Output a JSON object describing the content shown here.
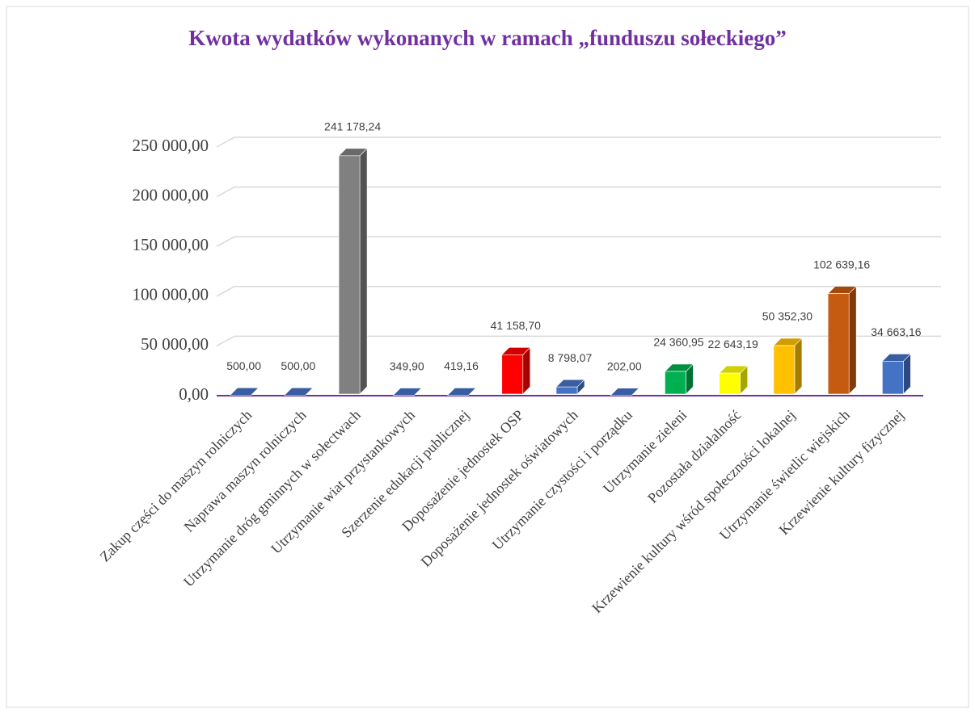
{
  "chart_data": {
    "type": "bar3d",
    "title": "Kwota wydatków wykonanych w ramach „funduszu sołeckiego”",
    "categories": [
      "Zakup części do maszyn rolniczych",
      "Naprawa maszyn rolniczych",
      "Utrzymanie dróg gminnych w sołectwach",
      "Utrzymanie wiat przystankowych",
      "Szerzenie edukacji publicznej",
      "Doposażenie jednostek OSP",
      "Doposażenie jednostek oświatowych",
      "Utrzymanie czystości i porządku",
      "Utrzymanie zieleni",
      "Pozostała działalność",
      "Krzewienie kultury wśród społeczności lokalnej",
      "Utrzymanie świetlic wiejskich",
      "Krzewienie kultury fizycznej"
    ],
    "values": [
      500,
      500,
      241178.24,
      349.9,
      419.16,
      41158.7,
      8798.07,
      202,
      24360.95,
      22643.19,
      50352.3,
      102639.16,
      34663.16
    ],
    "value_labels": [
      "500,00",
      "500,00",
      "241 178,24",
      "349,90",
      "419,16",
      "41 158,70",
      "8 798,07",
      "202,00",
      "24 360,95",
      "22 643,19",
      "50 352,30",
      "102 639,16",
      "34 663,16"
    ],
    "colors": [
      "#4472c4",
      "#4472c4",
      "#808080",
      "#4472c4",
      "#4472c4",
      "#ff0000",
      "#4472c4",
      "#4472c4",
      "#00b050",
      "#ffff00",
      "#ffc000",
      "#c55a11",
      "#4472c4"
    ],
    "ylim": [
      0,
      250000
    ],
    "yticks": [
      {
        "value": 0,
        "label": "0,00"
      },
      {
        "value": 50000,
        "label": "50 000,00"
      },
      {
        "value": 100000,
        "label": "100 000,00"
      },
      {
        "value": 150000,
        "label": "150 000,00"
      },
      {
        "value": 200000,
        "label": "200 000,00"
      },
      {
        "value": 250000,
        "label": "250 000,00"
      }
    ],
    "grid": true
  }
}
